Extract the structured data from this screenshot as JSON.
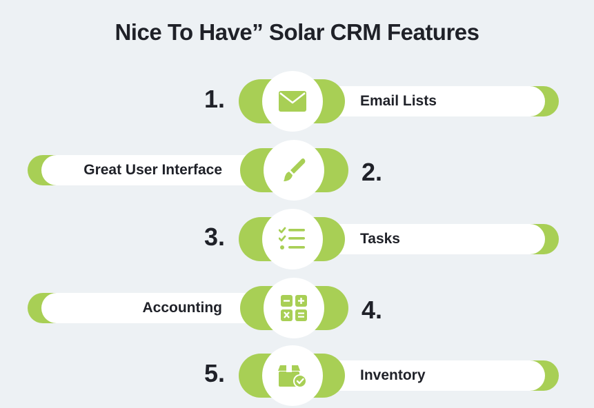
{
  "title": "Nice To Have” Solar CRM Features",
  "colors": {
    "accent": "#a8cf55",
    "background": "#edf1f4",
    "text": "#1f2128"
  },
  "features": [
    {
      "number": "1.",
      "label": "Email Lists",
      "icon": "envelope-icon"
    },
    {
      "number": "2.",
      "label": "Great User Interface",
      "icon": "paintbrush-icon"
    },
    {
      "number": "3.",
      "label": "Tasks",
      "icon": "checklist-icon"
    },
    {
      "number": "4.",
      "label": "Accounting",
      "icon": "calculator-icon"
    },
    {
      "number": "5.",
      "label": "Inventory",
      "icon": "inventory-box-icon"
    }
  ]
}
